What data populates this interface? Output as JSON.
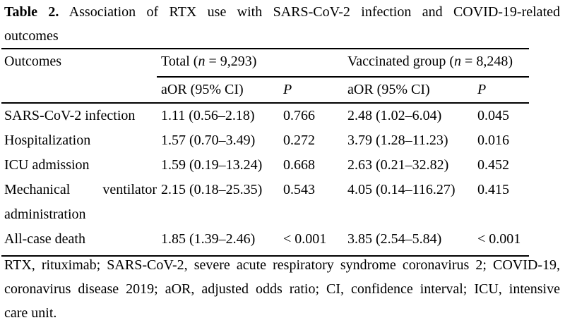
{
  "title": {
    "label": "Table 2.",
    "line1_rest": "Association of RTX use with SARS-CoV-2 infection and COVID-19-related",
    "line2": "outcomes"
  },
  "table": {
    "header": {
      "outcomes": "Outcomes",
      "total_group": {
        "prefix": "Total (",
        "italic_n": "n",
        "suffix": " = 9,293)"
      },
      "vaccinated_group": {
        "prefix": "Vaccinated group (",
        "italic_n": "n",
        "suffix": " = 8,248)"
      },
      "aor_label": "aOR (95% CI)",
      "p_label": "P"
    },
    "rows": [
      {
        "outcome": "SARS-CoV-2 infection",
        "total_aor": "1.11 (0.56–2.18)",
        "total_p": "0.766",
        "vac_aor": "2.48 (1.02–6.04)",
        "vac_p": "0.045"
      },
      {
        "outcome": "Hospitalization",
        "total_aor": "1.57 (0.70–3.49)",
        "total_p": "0.272",
        "vac_aor": "3.79 (1.28–11.23)",
        "vac_p": "0.016"
      },
      {
        "outcome": "ICU admission",
        "total_aor": "1.59 (0.19–13.24)",
        "total_p": "0.668",
        "vac_aor": "2.63 (0.21–32.82)",
        "vac_p": "0.452"
      },
      {
        "outcome": "Mechanical ventilator administration",
        "total_aor": "2.15 (0.18–25.35)",
        "total_p": "0.543",
        "vac_aor": "4.05 (0.14–116.27)",
        "vac_p": "0.415"
      },
      {
        "outcome": "All-case death",
        "total_aor": "1.85 (1.39–2.46)",
        "total_p": "< 0.001",
        "vac_aor": "3.85 (2.54–5.84)",
        "vac_p": "< 0.001"
      }
    ]
  },
  "footnote": {
    "line1": "RTX, rituximab; SARS-CoV-2, severe acute respiratory syndrome coronavirus 2; COVID-19,",
    "line2": "coronavirus disease 2019; aOR, adjusted odds ratio; CI, confidence interval; ICU, intensive",
    "line3": "care unit."
  }
}
